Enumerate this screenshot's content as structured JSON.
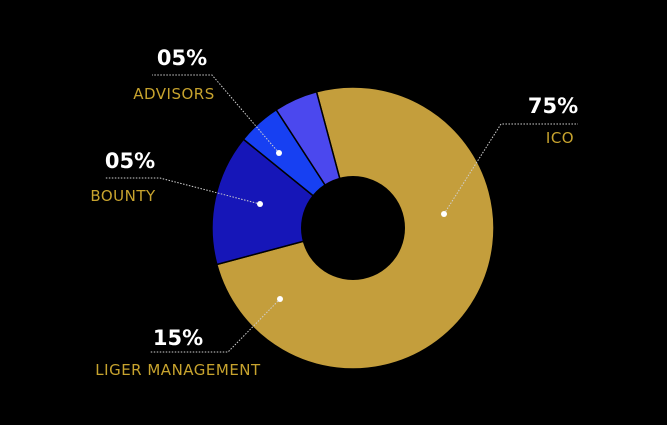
{
  "chart_data": {
    "type": "pie",
    "style": "donut",
    "legend": "callouts",
    "grid": false,
    "categories": [
      "ICO",
      "LIGER MANAGEMENT",
      "BOUNTY",
      "ADVISORS"
    ],
    "values": [
      75,
      15,
      5,
      5
    ],
    "value_labels": [
      "75%",
      "15%",
      "05%",
      "05%"
    ],
    "colors": [
      "#C49E3C",
      "#1616B8",
      "#1740F2",
      "#4B48EE"
    ],
    "label_color": "#C7A32E",
    "hole_color": "#000000"
  }
}
